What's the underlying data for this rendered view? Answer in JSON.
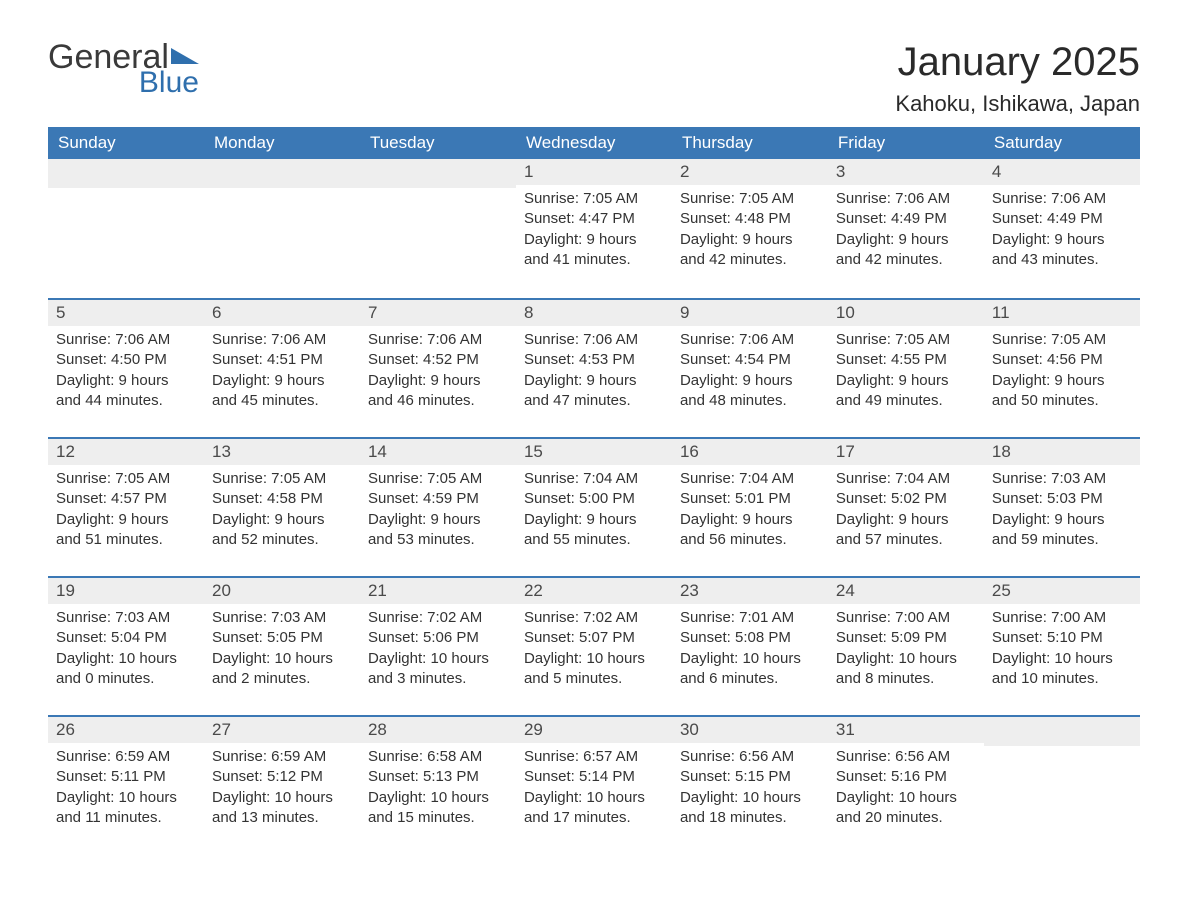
{
  "logo": {
    "word1": "General",
    "word2": "Blue",
    "triangle_color": "#2f6fad"
  },
  "title": "January 2025",
  "subtitle": "Kahoku, Ishikawa, Japan",
  "colors": {
    "header_bg": "#3b78b5",
    "header_text": "#ffffff",
    "daynum_bg": "#eeeeee",
    "week_border": "#3b78b5",
    "body_text": "#333333"
  },
  "day_names": [
    "Sunday",
    "Monday",
    "Tuesday",
    "Wednesday",
    "Thursday",
    "Friday",
    "Saturday"
  ],
  "weeks": [
    [
      {
        "blank": true
      },
      {
        "blank": true
      },
      {
        "blank": true
      },
      {
        "day": "1",
        "sunrise": "Sunrise: 7:05 AM",
        "sunset": "Sunset: 4:47 PM",
        "dl1": "Daylight: 9 hours",
        "dl2": "and 41 minutes."
      },
      {
        "day": "2",
        "sunrise": "Sunrise: 7:05 AM",
        "sunset": "Sunset: 4:48 PM",
        "dl1": "Daylight: 9 hours",
        "dl2": "and 42 minutes."
      },
      {
        "day": "3",
        "sunrise": "Sunrise: 7:06 AM",
        "sunset": "Sunset: 4:49 PM",
        "dl1": "Daylight: 9 hours",
        "dl2": "and 42 minutes."
      },
      {
        "day": "4",
        "sunrise": "Sunrise: 7:06 AM",
        "sunset": "Sunset: 4:49 PM",
        "dl1": "Daylight: 9 hours",
        "dl2": "and 43 minutes."
      }
    ],
    [
      {
        "day": "5",
        "sunrise": "Sunrise: 7:06 AM",
        "sunset": "Sunset: 4:50 PM",
        "dl1": "Daylight: 9 hours",
        "dl2": "and 44 minutes."
      },
      {
        "day": "6",
        "sunrise": "Sunrise: 7:06 AM",
        "sunset": "Sunset: 4:51 PM",
        "dl1": "Daylight: 9 hours",
        "dl2": "and 45 minutes."
      },
      {
        "day": "7",
        "sunrise": "Sunrise: 7:06 AM",
        "sunset": "Sunset: 4:52 PM",
        "dl1": "Daylight: 9 hours",
        "dl2": "and 46 minutes."
      },
      {
        "day": "8",
        "sunrise": "Sunrise: 7:06 AM",
        "sunset": "Sunset: 4:53 PM",
        "dl1": "Daylight: 9 hours",
        "dl2": "and 47 minutes."
      },
      {
        "day": "9",
        "sunrise": "Sunrise: 7:06 AM",
        "sunset": "Sunset: 4:54 PM",
        "dl1": "Daylight: 9 hours",
        "dl2": "and 48 minutes."
      },
      {
        "day": "10",
        "sunrise": "Sunrise: 7:05 AM",
        "sunset": "Sunset: 4:55 PM",
        "dl1": "Daylight: 9 hours",
        "dl2": "and 49 minutes."
      },
      {
        "day": "11",
        "sunrise": "Sunrise: 7:05 AM",
        "sunset": "Sunset: 4:56 PM",
        "dl1": "Daylight: 9 hours",
        "dl2": "and 50 minutes."
      }
    ],
    [
      {
        "day": "12",
        "sunrise": "Sunrise: 7:05 AM",
        "sunset": "Sunset: 4:57 PM",
        "dl1": "Daylight: 9 hours",
        "dl2": "and 51 minutes."
      },
      {
        "day": "13",
        "sunrise": "Sunrise: 7:05 AM",
        "sunset": "Sunset: 4:58 PM",
        "dl1": "Daylight: 9 hours",
        "dl2": "and 52 minutes."
      },
      {
        "day": "14",
        "sunrise": "Sunrise: 7:05 AM",
        "sunset": "Sunset: 4:59 PM",
        "dl1": "Daylight: 9 hours",
        "dl2": "and 53 minutes."
      },
      {
        "day": "15",
        "sunrise": "Sunrise: 7:04 AM",
        "sunset": "Sunset: 5:00 PM",
        "dl1": "Daylight: 9 hours",
        "dl2": "and 55 minutes."
      },
      {
        "day": "16",
        "sunrise": "Sunrise: 7:04 AM",
        "sunset": "Sunset: 5:01 PM",
        "dl1": "Daylight: 9 hours",
        "dl2": "and 56 minutes."
      },
      {
        "day": "17",
        "sunrise": "Sunrise: 7:04 AM",
        "sunset": "Sunset: 5:02 PM",
        "dl1": "Daylight: 9 hours",
        "dl2": "and 57 minutes."
      },
      {
        "day": "18",
        "sunrise": "Sunrise: 7:03 AM",
        "sunset": "Sunset: 5:03 PM",
        "dl1": "Daylight: 9 hours",
        "dl2": "and 59 minutes."
      }
    ],
    [
      {
        "day": "19",
        "sunrise": "Sunrise: 7:03 AM",
        "sunset": "Sunset: 5:04 PM",
        "dl1": "Daylight: 10 hours",
        "dl2": "and 0 minutes."
      },
      {
        "day": "20",
        "sunrise": "Sunrise: 7:03 AM",
        "sunset": "Sunset: 5:05 PM",
        "dl1": "Daylight: 10 hours",
        "dl2": "and 2 minutes."
      },
      {
        "day": "21",
        "sunrise": "Sunrise: 7:02 AM",
        "sunset": "Sunset: 5:06 PM",
        "dl1": "Daylight: 10 hours",
        "dl2": "and 3 minutes."
      },
      {
        "day": "22",
        "sunrise": "Sunrise: 7:02 AM",
        "sunset": "Sunset: 5:07 PM",
        "dl1": "Daylight: 10 hours",
        "dl2": "and 5 minutes."
      },
      {
        "day": "23",
        "sunrise": "Sunrise: 7:01 AM",
        "sunset": "Sunset: 5:08 PM",
        "dl1": "Daylight: 10 hours",
        "dl2": "and 6 minutes."
      },
      {
        "day": "24",
        "sunrise": "Sunrise: 7:00 AM",
        "sunset": "Sunset: 5:09 PM",
        "dl1": "Daylight: 10 hours",
        "dl2": "and 8 minutes."
      },
      {
        "day": "25",
        "sunrise": "Sunrise: 7:00 AM",
        "sunset": "Sunset: 5:10 PM",
        "dl1": "Daylight: 10 hours",
        "dl2": "and 10 minutes."
      }
    ],
    [
      {
        "day": "26",
        "sunrise": "Sunrise: 6:59 AM",
        "sunset": "Sunset: 5:11 PM",
        "dl1": "Daylight: 10 hours",
        "dl2": "and 11 minutes."
      },
      {
        "day": "27",
        "sunrise": "Sunrise: 6:59 AM",
        "sunset": "Sunset: 5:12 PM",
        "dl1": "Daylight: 10 hours",
        "dl2": "and 13 minutes."
      },
      {
        "day": "28",
        "sunrise": "Sunrise: 6:58 AM",
        "sunset": "Sunset: 5:13 PM",
        "dl1": "Daylight: 10 hours",
        "dl2": "and 15 minutes."
      },
      {
        "day": "29",
        "sunrise": "Sunrise: 6:57 AM",
        "sunset": "Sunset: 5:14 PM",
        "dl1": "Daylight: 10 hours",
        "dl2": "and 17 minutes."
      },
      {
        "day": "30",
        "sunrise": "Sunrise: 6:56 AM",
        "sunset": "Sunset: 5:15 PM",
        "dl1": "Daylight: 10 hours",
        "dl2": "and 18 minutes."
      },
      {
        "day": "31",
        "sunrise": "Sunrise: 6:56 AM",
        "sunset": "Sunset: 5:16 PM",
        "dl1": "Daylight: 10 hours",
        "dl2": "and 20 minutes."
      },
      {
        "blank": true
      }
    ]
  ]
}
